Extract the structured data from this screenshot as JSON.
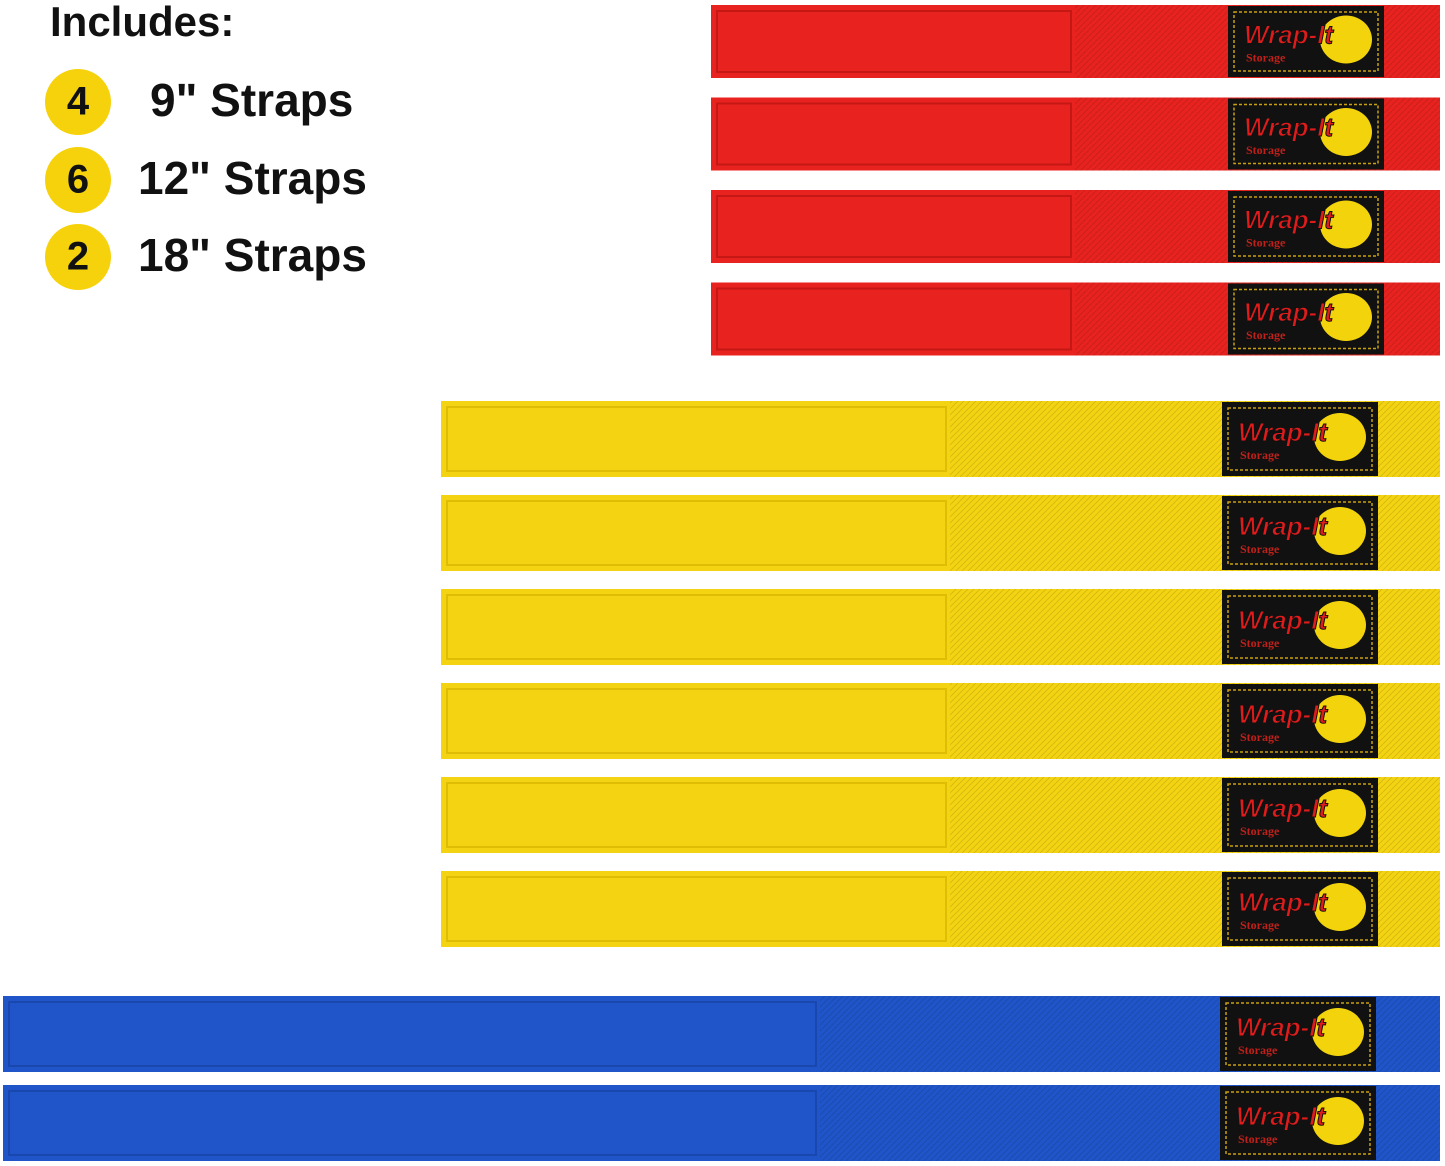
{
  "header": {
    "title": "Includes:"
  },
  "items": [
    {
      "count": 4,
      "label": "9\" Straps"
    },
    {
      "count": 6,
      "label": "12\" Straps"
    },
    {
      "count": 2,
      "label": "18\" Straps"
    }
  ],
  "brand": {
    "name": "Wrap-It",
    "sub": "Storage"
  }
}
